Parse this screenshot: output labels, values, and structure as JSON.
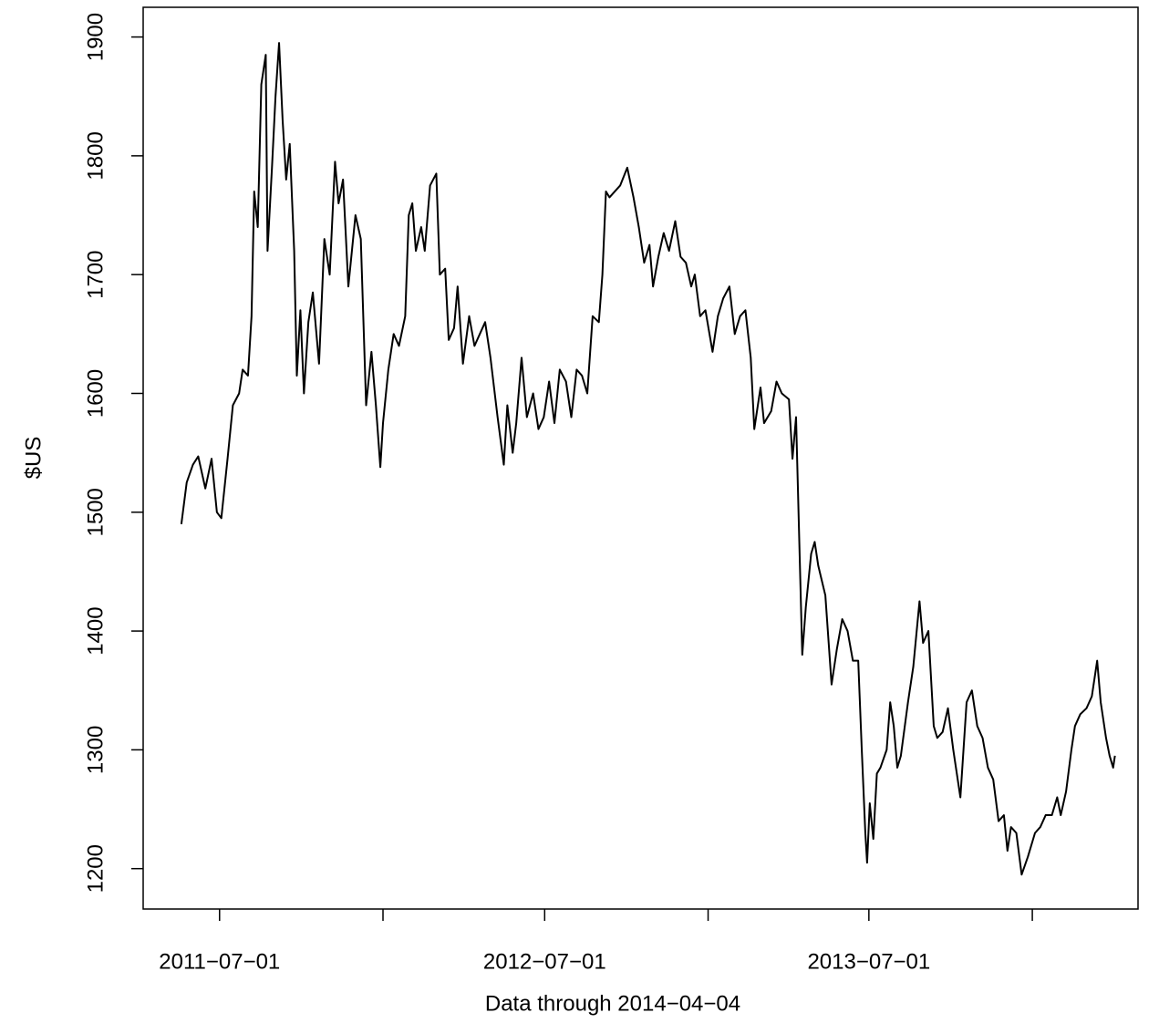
{
  "chart_data": {
    "type": "line",
    "ylabel": "$US",
    "xlabel": "Data through 2014−04−04",
    "color": "#000000",
    "xlim": [
      "2011-04-06",
      "2014-04-30"
    ],
    "ylim": [
      1166,
      1925
    ],
    "yticks": [
      1200,
      1300,
      1400,
      1500,
      1600,
      1700,
      1800,
      1900
    ],
    "xticks": [
      {
        "value": "2011-07-01",
        "label": "2011−07−01"
      },
      {
        "value": "2012-01-01"
      },
      {
        "value": "2012-07-01",
        "label": "2012−07−01"
      },
      {
        "value": "2013-01-01"
      },
      {
        "value": "2013-07-01",
        "label": "2013−07−01"
      },
      {
        "value": "2014-01-01"
      }
    ],
    "x": [
      "2011-05-19",
      "2011-05-25",
      "2011-06-01",
      "2011-06-07",
      "2011-06-15",
      "2011-06-22",
      "2011-06-28",
      "2011-07-03",
      "2011-07-10",
      "2011-07-16",
      "2011-07-23",
      "2011-07-27",
      "2011-08-02",
      "2011-08-06",
      "2011-08-09",
      "2011-08-13",
      "2011-08-17",
      "2011-08-22",
      "2011-08-24",
      "2011-08-29",
      "2011-09-02",
      "2011-09-06",
      "2011-09-10",
      "2011-09-14",
      "2011-09-18",
      "2011-09-23",
      "2011-09-26",
      "2011-09-30",
      "2011-10-04",
      "2011-10-09",
      "2011-10-14",
      "2011-10-21",
      "2011-10-27",
      "2011-11-02",
      "2011-11-08",
      "2011-11-12",
      "2011-11-17",
      "2011-11-23",
      "2011-11-27",
      "2011-12-01",
      "2011-12-07",
      "2011-12-13",
      "2011-12-19",
      "2011-12-24",
      "2011-12-29",
      "2012-01-01",
      "2012-01-07",
      "2012-01-13",
      "2012-01-19",
      "2012-01-26",
      "2012-01-30",
      "2012-02-03",
      "2012-02-07",
      "2012-02-13",
      "2012-02-17",
      "2012-02-23",
      "2012-03-01",
      "2012-03-05",
      "2012-03-11",
      "2012-03-15",
      "2012-03-21",
      "2012-03-25",
      "2012-03-31",
      "2012-04-07",
      "2012-04-13",
      "2012-04-19",
      "2012-04-25",
      "2012-05-01",
      "2012-05-09",
      "2012-05-16",
      "2012-05-20",
      "2012-05-26",
      "2012-05-30",
      "2012-06-05",
      "2012-06-11",
      "2012-06-18",
      "2012-06-24",
      "2012-06-30",
      "2012-07-06",
      "2012-07-12",
      "2012-07-18",
      "2012-07-25",
      "2012-07-31",
      "2012-08-06",
      "2012-08-12",
      "2012-08-18",
      "2012-08-24",
      "2012-08-31",
      "2012-09-04",
      "2012-09-08",
      "2012-09-12",
      "2012-09-18",
      "2012-09-24",
      "2012-10-02",
      "2012-10-09",
      "2012-10-15",
      "2012-10-21",
      "2012-10-27",
      "2012-10-31",
      "2012-11-06",
      "2012-11-12",
      "2012-11-18",
      "2012-11-25",
      "2012-12-01",
      "2012-12-07",
      "2012-12-13",
      "2012-12-17",
      "2012-12-23",
      "2012-12-29",
      "2013-01-06",
      "2013-01-12",
      "2013-01-18",
      "2013-01-25",
      "2013-01-31",
      "2013-02-06",
      "2013-02-12",
      "2013-02-18",
      "2013-02-22",
      "2013-03-01",
      "2013-03-05",
      "2013-03-13",
      "2013-03-19",
      "2013-03-25",
      "2013-04-02",
      "2013-04-06",
      "2013-04-10",
      "2013-04-17",
      "2013-04-21",
      "2013-04-27",
      "2013-05-01",
      "2013-05-05",
      "2013-05-13",
      "2013-05-20",
      "2013-05-26",
      "2013-06-01",
      "2013-06-07",
      "2013-06-13",
      "2013-06-19",
      "2013-06-23",
      "2013-06-27",
      "2013-06-29",
      "2013-07-02",
      "2013-07-06",
      "2013-07-10",
      "2013-07-14",
      "2013-07-21",
      "2013-07-25",
      "2013-07-29",
      "2013-08-02",
      "2013-08-06",
      "2013-08-14",
      "2013-08-20",
      "2013-08-27",
      "2013-08-31",
      "2013-09-06",
      "2013-09-12",
      "2013-09-16",
      "2013-09-22",
      "2013-09-28",
      "2013-10-04",
      "2013-10-12",
      "2013-10-19",
      "2013-10-25",
      "2013-10-31",
      "2013-11-06",
      "2013-11-12",
      "2013-11-18",
      "2013-11-24",
      "2013-11-30",
      "2013-12-04",
      "2013-12-08",
      "2013-12-14",
      "2013-12-20",
      "2013-12-27",
      "2014-01-04",
      "2014-01-10",
      "2014-01-16",
      "2014-01-23",
      "2014-01-29",
      "2014-02-02",
      "2014-02-08",
      "2014-02-14",
      "2014-02-18",
      "2014-02-24",
      "2014-03-03",
      "2014-03-09",
      "2014-03-15",
      "2014-03-19",
      "2014-03-25",
      "2014-03-29",
      "2014-04-02",
      "2014-04-04"
    ],
    "values": [
      1490,
      1525,
      1540,
      1547,
      1520,
      1545,
      1500,
      1495,
      1545,
      1590,
      1600,
      1620,
      1615,
      1665,
      1770,
      1740,
      1860,
      1885,
      1720,
      1790,
      1850,
      1895,
      1830,
      1780,
      1810,
      1720,
      1615,
      1670,
      1600,
      1660,
      1685,
      1625,
      1730,
      1700,
      1795,
      1760,
      1780,
      1690,
      1720,
      1750,
      1730,
      1590,
      1635,
      1590,
      1538,
      1575,
      1620,
      1650,
      1640,
      1665,
      1750,
      1760,
      1720,
      1740,
      1720,
      1775,
      1785,
      1700,
      1705,
      1645,
      1655,
      1690,
      1625,
      1665,
      1640,
      1650,
      1660,
      1630,
      1580,
      1540,
      1590,
      1550,
      1575,
      1630,
      1580,
      1600,
      1570,
      1580,
      1610,
      1575,
      1620,
      1610,
      1580,
      1620,
      1615,
      1600,
      1665,
      1660,
      1700,
      1770,
      1765,
      1770,
      1775,
      1790,
      1765,
      1740,
      1710,
      1725,
      1690,
      1715,
      1735,
      1720,
      1745,
      1715,
      1710,
      1690,
      1700,
      1665,
      1670,
      1635,
      1665,
      1680,
      1690,
      1650,
      1665,
      1670,
      1630,
      1570,
      1605,
      1575,
      1585,
      1610,
      1600,
      1595,
      1545,
      1580,
      1380,
      1420,
      1465,
      1475,
      1455,
      1430,
      1355,
      1385,
      1410,
      1400,
      1375,
      1375,
      1300,
      1230,
      1205,
      1255,
      1225,
      1280,
      1285,
      1300,
      1340,
      1320,
      1285,
      1295,
      1340,
      1370,
      1425,
      1390,
      1400,
      1320,
      1310,
      1315,
      1335,
      1300,
      1260,
      1340,
      1350,
      1320,
      1310,
      1285,
      1275,
      1240,
      1245,
      1215,
      1235,
      1230,
      1195,
      1210,
      1230,
      1235,
      1245,
      1245,
      1260,
      1245,
      1265,
      1300,
      1320,
      1330,
      1335,
      1345,
      1375,
      1340,
      1310,
      1295,
      1285,
      1295
    ]
  }
}
